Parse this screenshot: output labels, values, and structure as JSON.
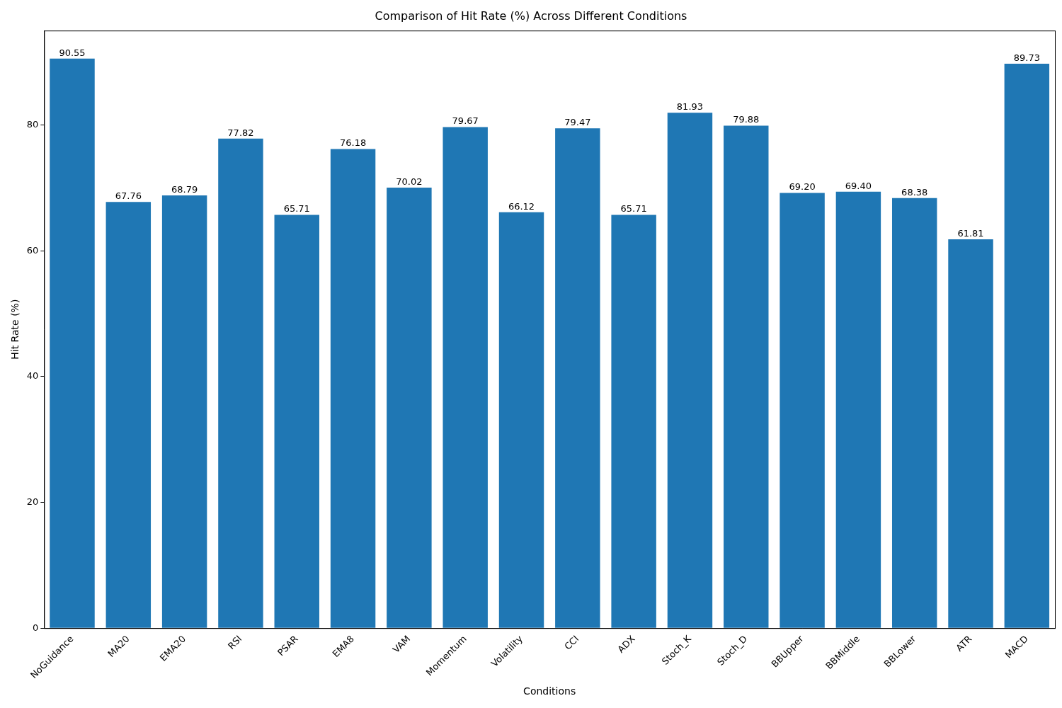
{
  "chart_data": {
    "type": "bar",
    "title": "Comparison of Hit Rate (%) Across Different Conditions",
    "x_label": "Conditions",
    "y_label": "Hit Rate (%)",
    "categories": [
      "NoGuidance",
      "MA20",
      "EMA20",
      "RSI",
      "PSAR",
      "EMA8",
      "VAM",
      "Momentum",
      "Volatility",
      "CCI",
      "ADX",
      "Stoch_K",
      "Stoch_D",
      "BBUpper",
      "BBMiddle",
      "BBLower",
      "ATR",
      "MACD"
    ],
    "values": [
      90.55,
      67.76,
      68.79,
      77.82,
      65.71,
      76.18,
      70.02,
      79.67,
      66.12,
      79.47,
      65.71,
      81.93,
      79.88,
      69.2,
      69.4,
      68.38,
      61.81,
      89.73
    ],
    "value_labels": [
      "90.55",
      "67.76",
      "68.79",
      "77.82",
      "65.71",
      "76.18",
      "70.02",
      "79.67",
      "66.12",
      "79.47",
      "65.71",
      "81.93",
      "79.88",
      "69.20",
      "69.40",
      "68.38",
      "61.81",
      "89.73"
    ],
    "color": "#1f77b4",
    "ylim": [
      0,
      95
    ],
    "yticks": [
      0,
      20,
      40,
      60,
      80
    ],
    "grid": false,
    "data_labels": true
  }
}
